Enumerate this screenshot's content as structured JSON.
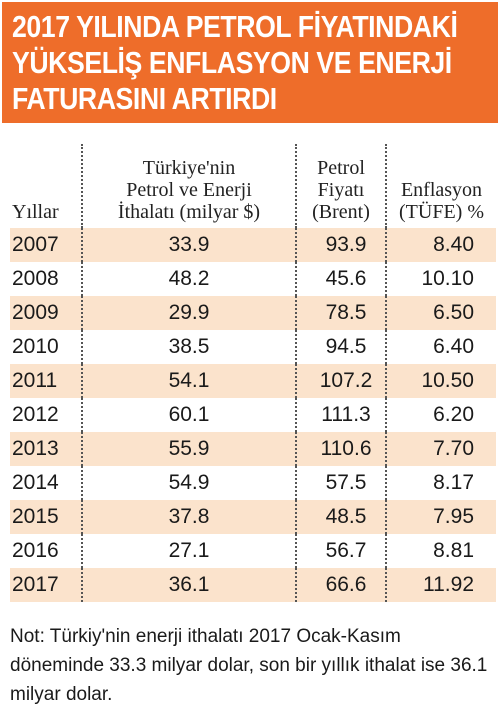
{
  "title": {
    "lines": [
      "2017 YILINDA PETROL FİYATINDAKİ",
      "YÜKSELİŞ ENFLASYON VE ENERJİ",
      "FATURASINI ARTIRDI"
    ]
  },
  "table": {
    "headers": {
      "year": [
        "Yıllar"
      ],
      "imports": [
        "Türkiye'nin",
        "Petrol ve Enerji",
        "İthalatı (milyar $)"
      ],
      "brent": [
        "Petrol",
        "Fiyatı",
        "(Brent)"
      ],
      "inflation": [
        "Enflasyon",
        "(TÜFE) %"
      ]
    },
    "rows": [
      [
        "2007",
        "33.9",
        "93.9",
        "8.40"
      ],
      [
        "2008",
        "48.2",
        "45.6",
        "10.10"
      ],
      [
        "2009",
        "29.9",
        "78.5",
        "6.50"
      ],
      [
        "2010",
        "38.5",
        "94.5",
        "6.40"
      ],
      [
        "2011",
        "54.1",
        "107.2",
        "10.50"
      ],
      [
        "2012",
        "60.1",
        "111.3",
        "6.20"
      ],
      [
        "2013",
        "55.9",
        "110.6",
        "7.70"
      ],
      [
        "2014",
        "54.9",
        "57.5",
        "8.17"
      ],
      [
        "2015",
        "37.8",
        "48.5",
        "7.95"
      ],
      [
        "2016",
        "27.1",
        "56.7",
        "8.81"
      ],
      [
        "2017",
        "36.1",
        "66.6",
        "11.92"
      ]
    ]
  },
  "note": "Not: Türkiy'nin enerji ithalatı 2017 Ocak-Kasım döneminde 33.3 milyar dolar, son bir yıllık ithalat ise 36.1 milyar dolar.",
  "colors": {
    "title_background": "#ee6d2a",
    "title_text": "#ffffff",
    "stripe_row": "#fbe3cc",
    "text": "#1a1a1a"
  }
}
